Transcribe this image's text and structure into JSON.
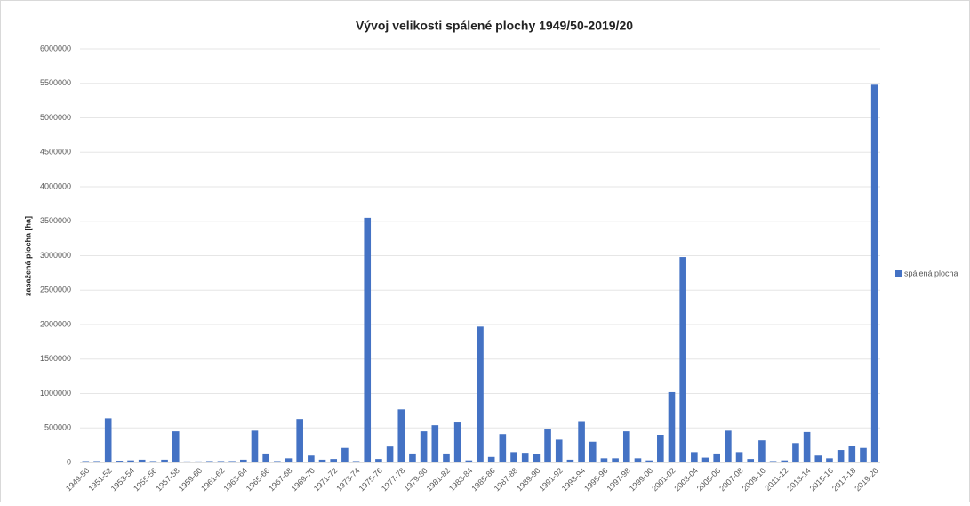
{
  "chart_data": {
    "type": "bar",
    "title": "Vývoj velikosti spálené plochy 1949/50-2019/20",
    "y_label": "zasažená plocha [ha]",
    "categories": [
      "1949-50",
      null,
      "1951-52",
      null,
      "1953-54",
      null,
      "1955-56",
      null,
      "1957-58",
      null,
      "1959-60",
      null,
      "1961-62",
      null,
      "1963-64",
      null,
      "1965-66",
      null,
      "1967-68",
      null,
      "1969-70",
      null,
      "1971-72",
      null,
      "1973-74",
      null,
      "1975-76",
      null,
      "1977-78",
      null,
      "1979-80",
      null,
      "1981-82",
      null,
      "1983-84",
      null,
      "1985-86",
      null,
      "1987-88",
      null,
      "1989-90",
      null,
      "1991-92",
      null,
      "1993-94",
      null,
      "1995-96",
      null,
      "1997-98",
      null,
      "1999-00",
      null,
      "2001-02",
      null,
      "2003-04",
      null,
      "2005-06",
      null,
      "2007-08",
      null,
      "2009-10",
      null,
      "2011-12",
      null,
      "2013-14",
      null,
      "2015-16",
      null,
      "2017-18",
      null,
      "2019-20"
    ],
    "series": [
      {
        "name": "spálená plocha",
        "color": "#4472c4",
        "values": [
          20000,
          20000,
          640000,
          25000,
          30000,
          40000,
          20000,
          40000,
          450000,
          15000,
          15000,
          20000,
          20000,
          20000,
          40000,
          460000,
          130000,
          20000,
          60000,
          630000,
          100000,
          40000,
          50000,
          210000,
          20000,
          3550000,
          50000,
          230000,
          770000,
          130000,
          450000,
          540000,
          130000,
          580000,
          30000,
          1970000,
          80000,
          410000,
          150000,
          140000,
          120000,
          490000,
          330000,
          40000,
          600000,
          300000,
          60000,
          60000,
          450000,
          60000,
          30000,
          400000,
          1020000,
          2980000,
          150000,
          70000,
          130000,
          460000,
          150000,
          50000,
          320000,
          20000,
          30000,
          280000,
          440000,
          100000,
          60000,
          180000,
          240000,
          210000,
          5480000
        ]
      }
    ],
    "ylim": [
      0,
      6000000
    ],
    "yticks": [
      0,
      500000,
      1000000,
      1500000,
      2000000,
      2500000,
      3000000,
      3500000,
      4000000,
      4500000,
      5000000,
      5500000,
      6000000
    ],
    "grid": true,
    "legend": "right"
  }
}
